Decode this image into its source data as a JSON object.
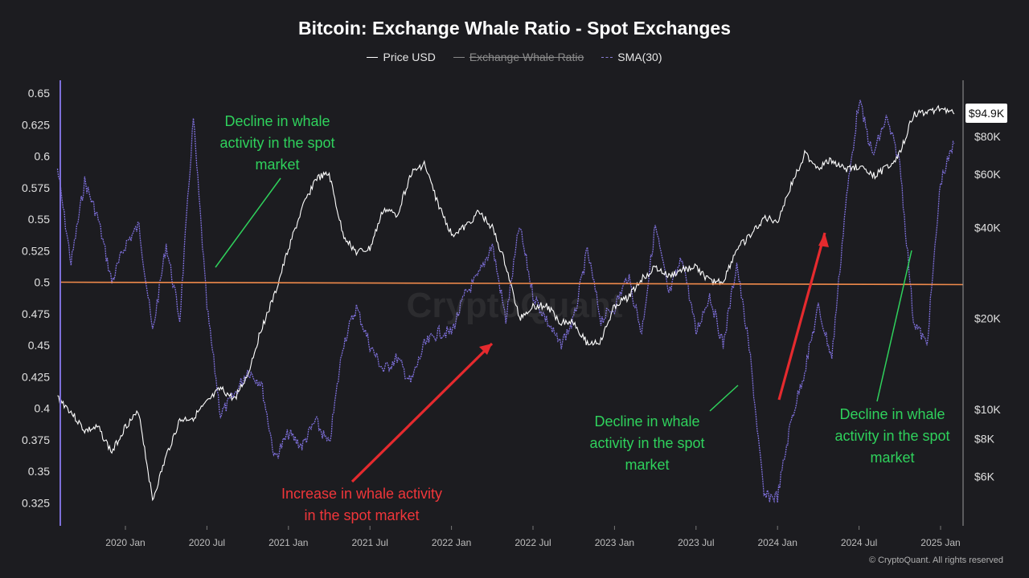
{
  "chart_data": {
    "type": "line",
    "title": "Bitcoin: Exchange Whale Ratio - Spot Exchanges",
    "legend": [
      {
        "name": "Price USD",
        "style": "solid",
        "active": true
      },
      {
        "name": "Exchange Whale Ratio",
        "style": "solid",
        "active": false
      },
      {
        "name": "SMA(30)",
        "style": "dashed",
        "active": true
      }
    ],
    "legend_position": "top-center",
    "x_ticks": [
      "2020 Jan",
      "2020 Jul",
      "2021 Jan",
      "2021 Jul",
      "2022 Jan",
      "2022 Jul",
      "2023 Jan",
      "2023 Jul",
      "2024 Jan",
      "2024 Jul",
      "2025 Jan"
    ],
    "x_range": [
      "2019-08",
      "2025-03"
    ],
    "y_left": {
      "ticks": [
        "0.65",
        "0.625",
        "0.6",
        "0.575",
        "0.55",
        "0.525",
        "0.5",
        "0.475",
        "0.45",
        "0.425",
        "0.4",
        "0.375",
        "0.35",
        "0.325"
      ],
      "range": [
        0.32,
        0.655
      ]
    },
    "y_right": {
      "scale": "log",
      "ticks": [
        "$80K",
        "$60K",
        "$40K",
        "$20K",
        "$10K",
        "$8K",
        "$6K"
      ],
      "current_price_label": "$94.9K"
    },
    "reference_line": {
      "value": 0.5,
      "color": "#f08a4b"
    },
    "series": [
      {
        "name": "Price USD",
        "color": "#ffffff",
        "axis": "right",
        "points": [
          [
            "2019-08",
            11000
          ],
          [
            "2019-09",
            9800
          ],
          [
            "2019-10",
            8500
          ],
          [
            "2019-11",
            8700
          ],
          [
            "2019-12",
            7200
          ],
          [
            "2020-01",
            8800
          ],
          [
            "2020-02",
            9800
          ],
          [
            "2020-03",
            5000
          ],
          [
            "2020-04",
            7000
          ],
          [
            "2020-05",
            9200
          ],
          [
            "2020-06",
            9400
          ],
          [
            "2020-07",
            10500
          ],
          [
            "2020-08",
            11700
          ],
          [
            "2020-09",
            10800
          ],
          [
            "2020-10",
            13000
          ],
          [
            "2020-11",
            18500
          ],
          [
            "2020-12",
            24000
          ],
          [
            "2021-01",
            34000
          ],
          [
            "2021-02",
            46000
          ],
          [
            "2021-03",
            58000
          ],
          [
            "2021-04",
            60000
          ],
          [
            "2021-05",
            38000
          ],
          [
            "2021-06",
            33000
          ],
          [
            "2021-07",
            34000
          ],
          [
            "2021-08",
            46000
          ],
          [
            "2021-09",
            44000
          ],
          [
            "2021-10",
            60000
          ],
          [
            "2021-11",
            65000
          ],
          [
            "2021-12",
            48000
          ],
          [
            "2022-01",
            38000
          ],
          [
            "2022-02",
            40000
          ],
          [
            "2022-03",
            45000
          ],
          [
            "2022-04",
            40000
          ],
          [
            "2022-05",
            30000
          ],
          [
            "2022-06",
            20000
          ],
          [
            "2022-07",
            22000
          ],
          [
            "2022-08",
            22000
          ],
          [
            "2022-09",
            19500
          ],
          [
            "2022-10",
            19500
          ],
          [
            "2022-11",
            16500
          ],
          [
            "2022-12",
            16800
          ],
          [
            "2023-01",
            22000
          ],
          [
            "2023-02",
            23500
          ],
          [
            "2023-03",
            27000
          ],
          [
            "2023-04",
            29500
          ],
          [
            "2023-05",
            27500
          ],
          [
            "2023-06",
            29000
          ],
          [
            "2023-07",
            29500
          ],
          [
            "2023-08",
            26500
          ],
          [
            "2023-09",
            26500
          ],
          [
            "2023-10",
            34000
          ],
          [
            "2023-11",
            37500
          ],
          [
            "2023-12",
            43000
          ],
          [
            "2024-01",
            42000
          ],
          [
            "2024-02",
            55000
          ],
          [
            "2024-03",
            70000
          ],
          [
            "2024-04",
            63000
          ],
          [
            "2024-05",
            67000
          ],
          [
            "2024-06",
            62000
          ],
          [
            "2024-07",
            64000
          ],
          [
            "2024-08",
            59000
          ],
          [
            "2024-09",
            63000
          ],
          [
            "2024-10",
            70000
          ],
          [
            "2024-11",
            95000
          ],
          [
            "2024-12",
            96000
          ],
          [
            "2025-01",
            100000
          ],
          [
            "2025-02",
            94900
          ]
        ]
      },
      {
        "name": "SMA(30)",
        "color": "#7d6fd9",
        "axis": "left",
        "points": [
          [
            "2019-08",
            0.59
          ],
          [
            "2019-09",
            0.515
          ],
          [
            "2019-10",
            0.58
          ],
          [
            "2019-11",
            0.55
          ],
          [
            "2019-12",
            0.5
          ],
          [
            "2020-01",
            0.53
          ],
          [
            "2020-02",
            0.545
          ],
          [
            "2020-03",
            0.46
          ],
          [
            "2020-04",
            0.53
          ],
          [
            "2020-05",
            0.47
          ],
          [
            "2020-06",
            0.63
          ],
          [
            "2020-07",
            0.48
          ],
          [
            "2020-08",
            0.395
          ],
          [
            "2020-09",
            0.41
          ],
          [
            "2020-10",
            0.43
          ],
          [
            "2020-11",
            0.42
          ],
          [
            "2020-12",
            0.36
          ],
          [
            "2021-01",
            0.38
          ],
          [
            "2021-02",
            0.37
          ],
          [
            "2021-03",
            0.39
          ],
          [
            "2021-04",
            0.37
          ],
          [
            "2021-05",
            0.45
          ],
          [
            "2021-06",
            0.48
          ],
          [
            "2021-07",
            0.45
          ],
          [
            "2021-08",
            0.43
          ],
          [
            "2021-09",
            0.44
          ],
          [
            "2021-10",
            0.42
          ],
          [
            "2021-11",
            0.45
          ],
          [
            "2021-12",
            0.46
          ],
          [
            "2022-01",
            0.46
          ],
          [
            "2022-02",
            0.49
          ],
          [
            "2022-03",
            0.505
          ],
          [
            "2022-04",
            0.53
          ],
          [
            "2022-05",
            0.47
          ],
          [
            "2022-06",
            0.545
          ],
          [
            "2022-07",
            0.49
          ],
          [
            "2022-08",
            0.47
          ],
          [
            "2022-09",
            0.45
          ],
          [
            "2022-10",
            0.47
          ],
          [
            "2022-11",
            0.525
          ],
          [
            "2022-12",
            0.47
          ],
          [
            "2023-01",
            0.48
          ],
          [
            "2023-02",
            0.505
          ],
          [
            "2023-03",
            0.46
          ],
          [
            "2023-04",
            0.545
          ],
          [
            "2023-05",
            0.49
          ],
          [
            "2023-06",
            0.52
          ],
          [
            "2023-07",
            0.46
          ],
          [
            "2023-08",
            0.49
          ],
          [
            "2023-09",
            0.45
          ],
          [
            "2023-10",
            0.515
          ],
          [
            "2023-11",
            0.44
          ],
          [
            "2023-12",
            0.33
          ],
          [
            "2024-01",
            0.33
          ],
          [
            "2024-02",
            0.39
          ],
          [
            "2024-03",
            0.43
          ],
          [
            "2024-04",
            0.48
          ],
          [
            "2024-05",
            0.44
          ],
          [
            "2024-06",
            0.56
          ],
          [
            "2024-07",
            0.645
          ],
          [
            "2024-08",
            0.6
          ],
          [
            "2024-09",
            0.63
          ],
          [
            "2024-10",
            0.595
          ],
          [
            "2024-11",
            0.47
          ],
          [
            "2024-12",
            0.45
          ],
          [
            "2025-01",
            0.58
          ],
          [
            "2025-02",
            0.61
          ]
        ]
      }
    ],
    "annotations": [
      {
        "lines": [
          "Decline in whale",
          "activity in the spot",
          "market"
        ],
        "color": "#2fd15c"
      },
      {
        "lines": [
          "Increase in whale activity",
          "in the spot market"
        ],
        "color": "#f0363a"
      },
      {
        "lines": [
          "Decline in whale",
          "activity in the spot",
          "market"
        ],
        "color": "#2fd15c"
      },
      {
        "lines": [
          "Decline in whale",
          "activity in the spot",
          "market"
        ],
        "color": "#2fd15c"
      }
    ],
    "watermark": "CryptoQuant",
    "copyright": "© CryptoQuant. All rights reserved"
  }
}
